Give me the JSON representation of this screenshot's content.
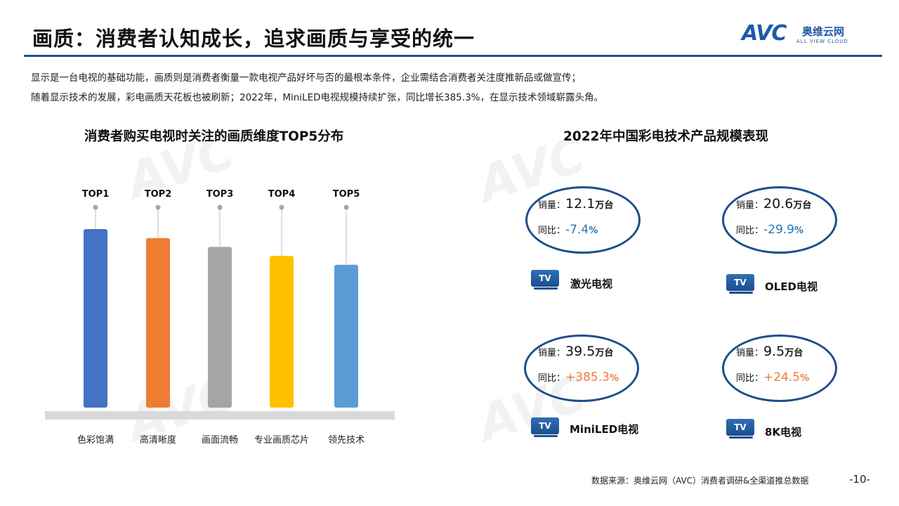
{
  "header": {
    "title": "画质：消费者认知成长，追求画质与享受的统一",
    "logo_text": "AVC",
    "logo_cn": "奥维云网",
    "logo_en": "ALL VIEW CLOUD"
  },
  "intro": {
    "line1": "显示是一台电视的基础功能，画质则是消费者衡量一款电视产品好坏与否的最根本条件，企业需结合消费者关注度推新品或做宣传；",
    "line2": "随着显示技术的发展，彩电画质天花板也被刷新；2022年，MiniLED电视规模持续扩张，同比增长385.3%，在显示技术领域崭露头角。"
  },
  "left_panel": {
    "title": "消费者购买电视时关注的画质维度TOP5分布"
  },
  "chart_data": {
    "type": "bar",
    "title": "消费者购买电视时关注的画质维度TOP5分布",
    "categories": [
      "色彩饱满",
      "高清晰度",
      "画面流畅",
      "专业画质芯片",
      "领先技术"
    ],
    "rank_labels": [
      "TOP1",
      "TOP2",
      "TOP3",
      "TOP4",
      "TOP5"
    ],
    "values": [
      100,
      95,
      90,
      85,
      80
    ],
    "colors": [
      "#4472c4",
      "#ed7d31",
      "#a5a5a5",
      "#ffc000",
      "#5b9bd5"
    ],
    "y_axis": "none",
    "grid": false,
    "legend": "none"
  },
  "right_panel": {
    "title": "2022年中国彩电技术产品规模表现",
    "sales_label": "销量：",
    "yoy_label": "同比：",
    "unit": "万台",
    "tv_icon_text": "TV",
    "products": [
      {
        "name": "激光电视",
        "sales": "12.1",
        "yoy": "-7.4",
        "pct": "%",
        "trend": "down"
      },
      {
        "name": "OLED电视",
        "sales": "20.6",
        "yoy": "-29.9",
        "pct": "%",
        "trend": "down"
      },
      {
        "name": "MiniLED电视",
        "sales": "39.5",
        "yoy": "+385.3",
        "pct": "%",
        "trend": "up"
      },
      {
        "name": "8K电视",
        "sales": "9.5",
        "yoy": "+24.5",
        "pct": "%",
        "trend": "up"
      }
    ],
    "colors": {
      "ellipse": "#1f4e8c",
      "negative": "#2e75b6",
      "positive": "#ed7d31"
    }
  },
  "footer": {
    "source": "数据来源：奥维云网（AVC）消费者调研&全渠道推总数据",
    "page": "-10-"
  }
}
